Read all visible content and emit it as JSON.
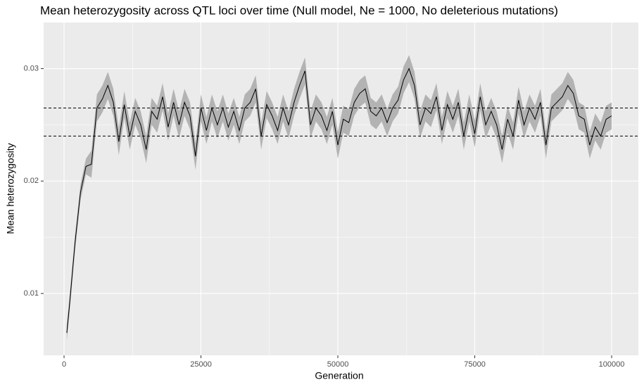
{
  "chart_data": {
    "type": "line",
    "title": "Mean heterozygosity across QTL loci over time (Null model, Ne = 1000, No deleterious mutations)",
    "x_label": "Generation",
    "y_label": "Mean heterozygosity",
    "xlim": [
      -3730,
      104880
    ],
    "ylim": [
      0.0045,
      0.0341
    ],
    "xticks": [
      0,
      25000,
      50000,
      75000,
      100000
    ],
    "yticks": [
      0.01,
      0.02,
      0.03
    ],
    "grid": true,
    "hlines": [
      0.0265,
      0.024
    ],
    "x": [
      500,
      1000,
      2000,
      3000,
      4000,
      5000,
      6000,
      7000,
      8000,
      9000,
      10000,
      11000,
      12000,
      13000,
      14000,
      15000,
      16000,
      17000,
      18000,
      19000,
      20000,
      21000,
      22000,
      23000,
      24000,
      25000,
      26000,
      27000,
      28000,
      29000,
      30000,
      31000,
      32000,
      33000,
      34000,
      35000,
      36000,
      37000,
      38000,
      39000,
      40000,
      41000,
      42000,
      43000,
      44000,
      45000,
      46000,
      47000,
      48000,
      49000,
      50000,
      51000,
      52000,
      53000,
      54000,
      55000,
      56000,
      57000,
      58000,
      59000,
      60000,
      61000,
      62000,
      63000,
      64000,
      65000,
      66000,
      67000,
      68000,
      69000,
      70000,
      71000,
      72000,
      73000,
      74000,
      75000,
      76000,
      77000,
      78000,
      79000,
      80000,
      81000,
      82000,
      83000,
      84000,
      85000,
      86000,
      87000,
      88000,
      89000,
      90000,
      91000,
      92000,
      93000,
      94000,
      95000,
      96000,
      97000,
      98000,
      99000,
      100000
    ],
    "series": [
      {
        "color": "#000000",
        "ribbon_color": "#b3b3b3",
        "values": [
          0.0065,
          0.009,
          0.0145,
          0.019,
          0.0213,
          0.0215,
          0.0265,
          0.0273,
          0.0285,
          0.027,
          0.0235,
          0.0268,
          0.024,
          0.0262,
          0.025,
          0.0228,
          0.0262,
          0.0255,
          0.0275,
          0.0248,
          0.027,
          0.025,
          0.027,
          0.0258,
          0.0222,
          0.0265,
          0.0245,
          0.0265,
          0.025,
          0.0265,
          0.0248,
          0.0262,
          0.0245,
          0.0265,
          0.027,
          0.0282,
          0.024,
          0.0268,
          0.0258,
          0.0245,
          0.0265,
          0.025,
          0.027,
          0.0285,
          0.0298,
          0.025,
          0.0265,
          0.0258,
          0.0245,
          0.0262,
          0.0232,
          0.0255,
          0.0252,
          0.027,
          0.0278,
          0.0282,
          0.0262,
          0.0258,
          0.0265,
          0.0252,
          0.0265,
          0.0272,
          0.029,
          0.03,
          0.0285,
          0.025,
          0.0265,
          0.026,
          0.0275,
          0.0245,
          0.0268,
          0.0255,
          0.027,
          0.024,
          0.0265,
          0.0242,
          0.0275,
          0.025,
          0.0262,
          0.025,
          0.0228,
          0.0255,
          0.024,
          0.0272,
          0.025,
          0.0265,
          0.0255,
          0.027,
          0.0232,
          0.0265,
          0.027,
          0.0275,
          0.0285,
          0.0278,
          0.0258,
          0.0255,
          0.0232,
          0.0248,
          0.024,
          0.0255,
          0.0258
        ],
        "lower": [
          0.0058,
          0.0083,
          0.0138,
          0.0183,
          0.0206,
          0.0203,
          0.0253,
          0.0261,
          0.0273,
          0.0258,
          0.0223,
          0.0256,
          0.0228,
          0.025,
          0.0238,
          0.0216,
          0.025,
          0.0243,
          0.0263,
          0.0236,
          0.0258,
          0.0238,
          0.0258,
          0.0246,
          0.021,
          0.0253,
          0.0233,
          0.0253,
          0.0238,
          0.0253,
          0.0236,
          0.025,
          0.0233,
          0.0253,
          0.0258,
          0.027,
          0.0228,
          0.0256,
          0.0246,
          0.0233,
          0.0253,
          0.0238,
          0.0258,
          0.0273,
          0.0286,
          0.0238,
          0.0253,
          0.0246,
          0.0233,
          0.025,
          0.022,
          0.0243,
          0.024,
          0.0258,
          0.0266,
          0.027,
          0.025,
          0.0246,
          0.0253,
          0.024,
          0.0253,
          0.026,
          0.0278,
          0.0288,
          0.0273,
          0.0238,
          0.0253,
          0.0248,
          0.0263,
          0.0233,
          0.0256,
          0.0243,
          0.0258,
          0.0228,
          0.0253,
          0.023,
          0.0263,
          0.0238,
          0.025,
          0.0238,
          0.0216,
          0.0243,
          0.0228,
          0.026,
          0.0238,
          0.0253,
          0.0243,
          0.0258,
          0.022,
          0.0253,
          0.0258,
          0.0263,
          0.0273,
          0.0266,
          0.0246,
          0.0243,
          0.022,
          0.0236,
          0.0228,
          0.0243,
          0.0246
        ],
        "upper": [
          0.0072,
          0.0097,
          0.0152,
          0.0197,
          0.022,
          0.0227,
          0.0277,
          0.0285,
          0.0297,
          0.0282,
          0.0247,
          0.028,
          0.0252,
          0.0274,
          0.0262,
          0.024,
          0.0274,
          0.0267,
          0.0287,
          0.026,
          0.0282,
          0.0262,
          0.0282,
          0.027,
          0.0234,
          0.0277,
          0.0257,
          0.0277,
          0.0262,
          0.0277,
          0.026,
          0.0274,
          0.0257,
          0.0277,
          0.0282,
          0.0294,
          0.0252,
          0.028,
          0.027,
          0.0257,
          0.0277,
          0.0262,
          0.0282,
          0.0297,
          0.031,
          0.0262,
          0.0277,
          0.027,
          0.0257,
          0.0274,
          0.0244,
          0.0267,
          0.0264,
          0.0282,
          0.029,
          0.0294,
          0.0274,
          0.027,
          0.0277,
          0.0264,
          0.0277,
          0.0284,
          0.0302,
          0.0312,
          0.0297,
          0.0262,
          0.0277,
          0.0272,
          0.0287,
          0.0257,
          0.028,
          0.0267,
          0.0282,
          0.0252,
          0.0277,
          0.0254,
          0.0287,
          0.0262,
          0.0274,
          0.0262,
          0.024,
          0.0267,
          0.0252,
          0.0284,
          0.0262,
          0.0277,
          0.0267,
          0.0282,
          0.0244,
          0.0277,
          0.0282,
          0.0287,
          0.0297,
          0.029,
          0.027,
          0.0267,
          0.0244,
          0.026,
          0.0252,
          0.0267,
          0.027
        ]
      }
    ]
  }
}
